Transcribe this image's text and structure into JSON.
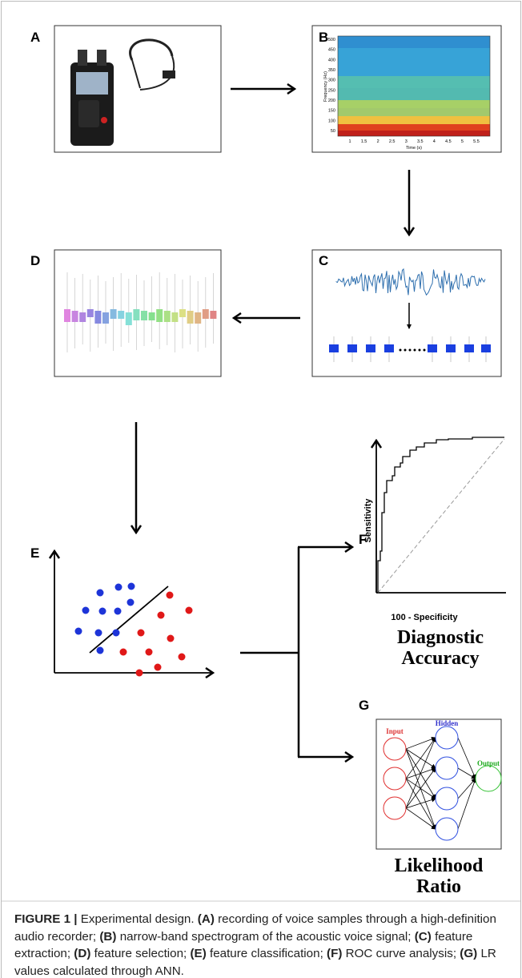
{
  "panel_labels": [
    "A",
    "B",
    "C",
    "D",
    "E",
    "F",
    "G"
  ],
  "spectrogram": {
    "y_label": "Frequency (Hz)",
    "x_label": "Time (s)",
    "y_ticks": [
      "500",
      "450",
      "400",
      "350",
      "300",
      "250",
      "200",
      "150",
      "100",
      "50"
    ],
    "x_ticks": [
      "1",
      "1.5",
      "2",
      "2.5",
      "3",
      "3.5",
      "4",
      "4.5",
      "5",
      "5.5"
    ]
  },
  "roc": {
    "y_label": "Sensitivity",
    "x_label": "100 - Specificity",
    "title": [
      "Diagnostic",
      "Accuracy"
    ]
  },
  "network": {
    "layers": [
      "Input",
      "Hidden",
      "Output"
    ],
    "title": [
      "Likelihood",
      "Ratio"
    ]
  },
  "caption": [
    {
      "text": "FIGURE 1 |",
      "bold": true
    },
    {
      "text": " Experimental design. ",
      "bold": false
    },
    {
      "text": "(A)",
      "bold": true
    },
    {
      "text": " recording of voice samples through a high-definition audio recorder; ",
      "bold": false
    },
    {
      "text": "(B)",
      "bold": true
    },
    {
      "text": " narrow-band spectrogram of the acoustic voice signal; ",
      "bold": false
    },
    {
      "text": "(C)",
      "bold": true
    },
    {
      "text": " feature extraction; ",
      "bold": false
    },
    {
      "text": "(D)",
      "bold": true
    },
    {
      "text": " feature selection; ",
      "bold": false
    },
    {
      "text": "(E)",
      "bold": true
    },
    {
      "text": " feature classification; ",
      "bold": false
    },
    {
      "text": "(F)",
      "bold": true
    },
    {
      "text": " ROC curve analysis; ",
      "bold": false
    },
    {
      "text": "(G)",
      "bold": true
    },
    {
      "text": " LR values calculated through ANN.",
      "bold": false
    }
  ]
}
